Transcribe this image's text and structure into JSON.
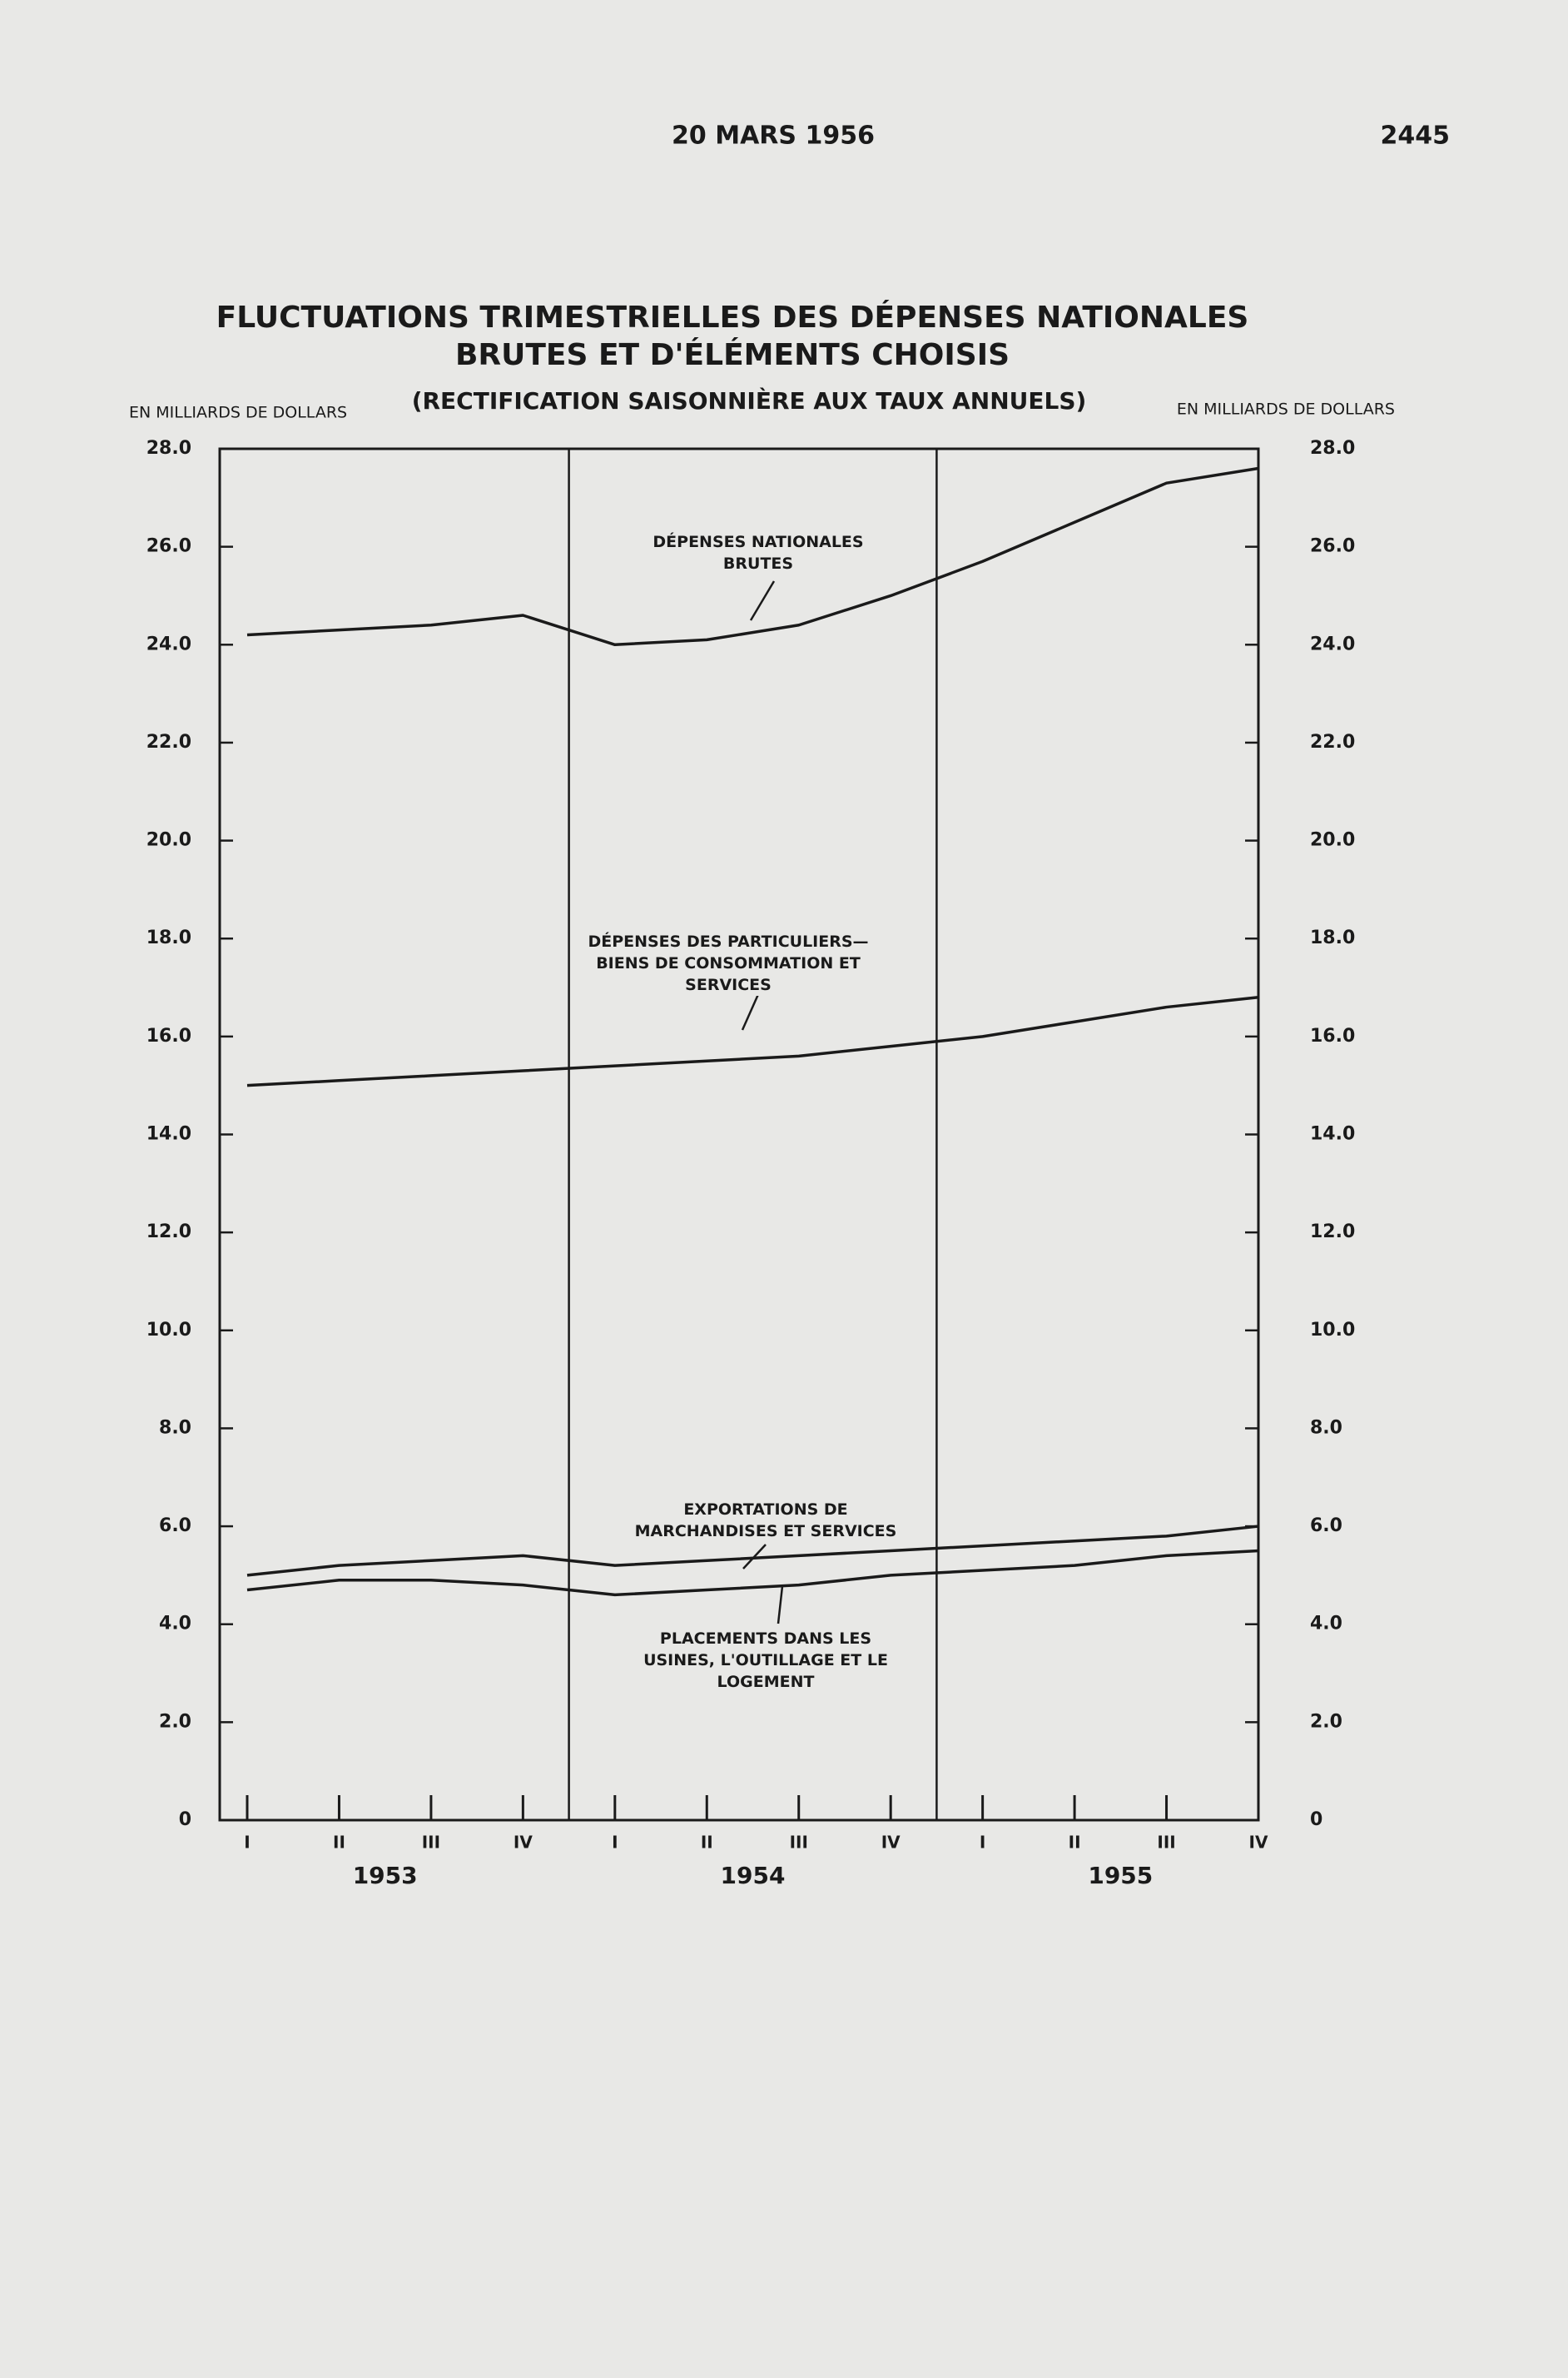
{
  "header": {
    "date": "20 MARS 1956",
    "page": "2445"
  },
  "chart_data": {
    "type": "line",
    "title": "FLUCTUATIONS TRIMESTRIELLES DES DÉPENSES NATIONALES BRUTES ET D'ÉLÉMENTS CHOISIS",
    "subtitle": "(RECTIFICATION SAISONNIÈRE AUX TAUX ANNUELS)",
    "ylabel": "EN MILLIARDS DE DOLLARS",
    "y2label": "EN MILLIARDS DE DOLLARS",
    "categories": [
      "I",
      "II",
      "III",
      "IV",
      "I",
      "II",
      "III",
      "IV",
      "I",
      "II",
      "III",
      "IV"
    ],
    "years": [
      "1953",
      "1954",
      "1955"
    ],
    "ylim": [
      0,
      28
    ],
    "yticks": [
      0,
      {
        "value": 2,
        "label": "2.0"
      },
      {
        "value": 4,
        "label": "4.0"
      },
      {
        "value": 6,
        "label": "6.0"
      },
      {
        "value": 8,
        "label": "8.0"
      },
      {
        "value": 10,
        "label": "10.0"
      },
      {
        "value": 12,
        "label": "12.0"
      },
      {
        "value": 14,
        "label": "14.0"
      },
      {
        "value": 16,
        "label": "16.0"
      },
      {
        "value": 18,
        "label": "18.0"
      },
      {
        "value": 20,
        "label": "20.0"
      },
      {
        "value": 22,
        "label": "22.0"
      },
      {
        "value": 24,
        "label": "24.0"
      },
      {
        "value": 26,
        "label": "26.0"
      },
      {
        "value": 28,
        "label": "28.0"
      }
    ],
    "grid": false,
    "series": [
      {
        "name": "DÉPENSES NATIONALES BRUTES",
        "color": "#1a1a1a",
        "values": [
          24.2,
          24.3,
          24.4,
          24.6,
          24.0,
          24.1,
          24.4,
          25.0,
          25.7,
          26.5,
          27.3,
          27.6
        ]
      },
      {
        "name": "DÉPENSES DES PARTICULIERS— BIENS DE CONSOMMATION ET SERVICES",
        "color": "#1a1a1a",
        "values": [
          15.0,
          15.1,
          15.2,
          15.3,
          15.4,
          15.5,
          15.6,
          15.8,
          16.0,
          16.3,
          16.6,
          16.8
        ]
      },
      {
        "name": "EXPORTATIONS DE MARCHANDISES ET SERVICES",
        "color": "#1a1a1a",
        "values": [
          5.0,
          5.2,
          5.3,
          5.4,
          5.2,
          5.3,
          5.4,
          5.5,
          5.6,
          5.7,
          5.8,
          6.0
        ]
      },
      {
        "name": "PLACEMENTS DANS LES USINES, L'OUTILLAGE ET LE LOGEMENT",
        "color": "#1a1a1a",
        "values": [
          4.7,
          4.9,
          4.9,
          4.8,
          4.6,
          4.7,
          4.8,
          5.0,
          5.1,
          5.2,
          5.4,
          5.5
        ]
      }
    ]
  }
}
